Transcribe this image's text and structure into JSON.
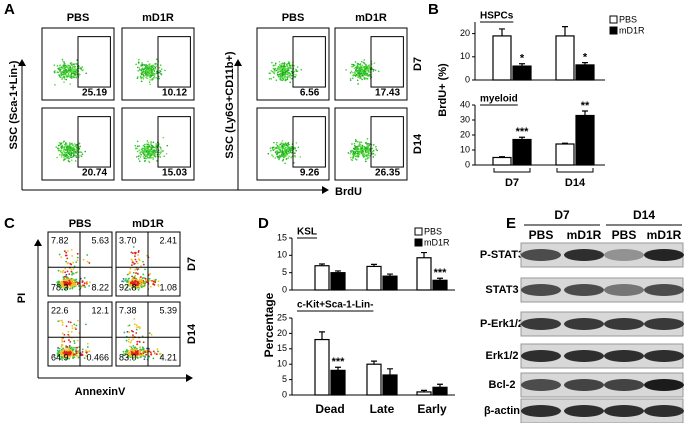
{
  "panel_a": {
    "label": "A",
    "columns": [
      "PBS",
      "mD1R",
      "PBS",
      "mD1R"
    ],
    "rows": [
      "D7",
      "D14"
    ],
    "y_label_left": "SSC (Sca-1+Lin-)",
    "y_label_right": "SSC (Ly6G+CD11b+)",
    "x_label": "BrdU",
    "values": [
      [
        "25.19",
        "10.12",
        "6.56",
        "17.43"
      ],
      [
        "20.74",
        "15.03",
        "9.26",
        "26.35"
      ]
    ]
  },
  "panel_b": {
    "label": "B",
    "y_label": "BrdU+ (%)",
    "legend": [
      {
        "name": "PBS",
        "color": "#ffffff"
      },
      {
        "name": "mD1R",
        "color": "#000000"
      }
    ],
    "categories": [
      "D7",
      "D14"
    ],
    "charts": [
      {
        "type": "bar",
        "title": "HSPCs",
        "ylim": [
          0,
          25
        ],
        "yticks": [
          0,
          10,
          20
        ],
        "series": [
          {
            "values": [
              19,
              19
            ],
            "errors": [
              3,
              4
            ]
          },
          {
            "values": [
              6,
              6.5
            ],
            "errors": [
              1,
              1
            ],
            "stars": [
              "*",
              "*"
            ]
          }
        ]
      },
      {
        "type": "bar",
        "title": "myeloid",
        "ylim": [
          0,
          40
        ],
        "yticks": [
          0,
          10,
          20,
          30,
          40
        ],
        "series": [
          {
            "values": [
              5,
              14
            ],
            "errors": [
              0.5,
              0.5
            ]
          },
          {
            "values": [
              17,
              33
            ],
            "errors": [
              1.5,
              3
            ],
            "stars": [
              "***",
              "**"
            ]
          }
        ]
      }
    ]
  },
  "panel_c": {
    "label": "C",
    "columns": [
      "PBS",
      "mD1R"
    ],
    "rows": [
      "D7",
      "D14"
    ],
    "y_label": "PI",
    "x_label": "AnnexinV",
    "quadrants": [
      [
        [
          "7.82",
          "5.63",
          "78.3",
          "8.22"
        ],
        [
          "3.70",
          "2.41",
          "92.8",
          "1.08"
        ]
      ],
      [
        [
          "22.6",
          "12.1",
          "64.9",
          "0.466"
        ],
        [
          "7.38",
          "5.39",
          "83.0",
          "4.21"
        ]
      ]
    ]
  },
  "panel_d": {
    "label": "D",
    "y_label": "Percentage",
    "legend": [
      {
        "name": "PBS",
        "color": "#ffffff"
      },
      {
        "name": "mD1R",
        "color": "#000000"
      }
    ],
    "categories": [
      "Dead",
      "Late",
      "Early"
    ],
    "charts": [
      {
        "type": "bar",
        "title": "KSL",
        "ylim": [
          0,
          15
        ],
        "yticks": [
          0,
          5,
          10,
          15
        ],
        "series": [
          {
            "values": [
              7,
              6.8,
              9.3
            ],
            "errors": [
              0.5,
              0.6,
              1.5
            ]
          },
          {
            "values": [
              5,
              4,
              2.8
            ],
            "errors": [
              0.5,
              0.6,
              0.6
            ],
            "stars": [
              null,
              null,
              "***"
            ]
          }
        ]
      },
      {
        "type": "bar",
        "title": "c-Kit+Sca-1-Lin-",
        "ylim": [
          0,
          25
        ],
        "yticks": [
          0,
          5,
          10,
          15,
          20,
          25
        ],
        "series": [
          {
            "values": [
              18,
              10,
              1
            ],
            "errors": [
              2.5,
              1,
              0.5
            ]
          },
          {
            "values": [
              8,
              6.5,
              2.5
            ],
            "errors": [
              1,
              2,
              1
            ],
            "stars": [
              "***",
              null,
              null
            ]
          }
        ]
      }
    ]
  },
  "panel_e": {
    "label": "E",
    "groups": [
      "D7",
      "D14"
    ],
    "lanes": [
      "PBS",
      "mD1R",
      "PBS",
      "mD1R"
    ],
    "proteins": [
      "P-STAT3",
      "STAT3",
      "P-Erk1/2",
      "Erk1/2",
      "Bcl-2",
      "β-actin"
    ]
  }
}
